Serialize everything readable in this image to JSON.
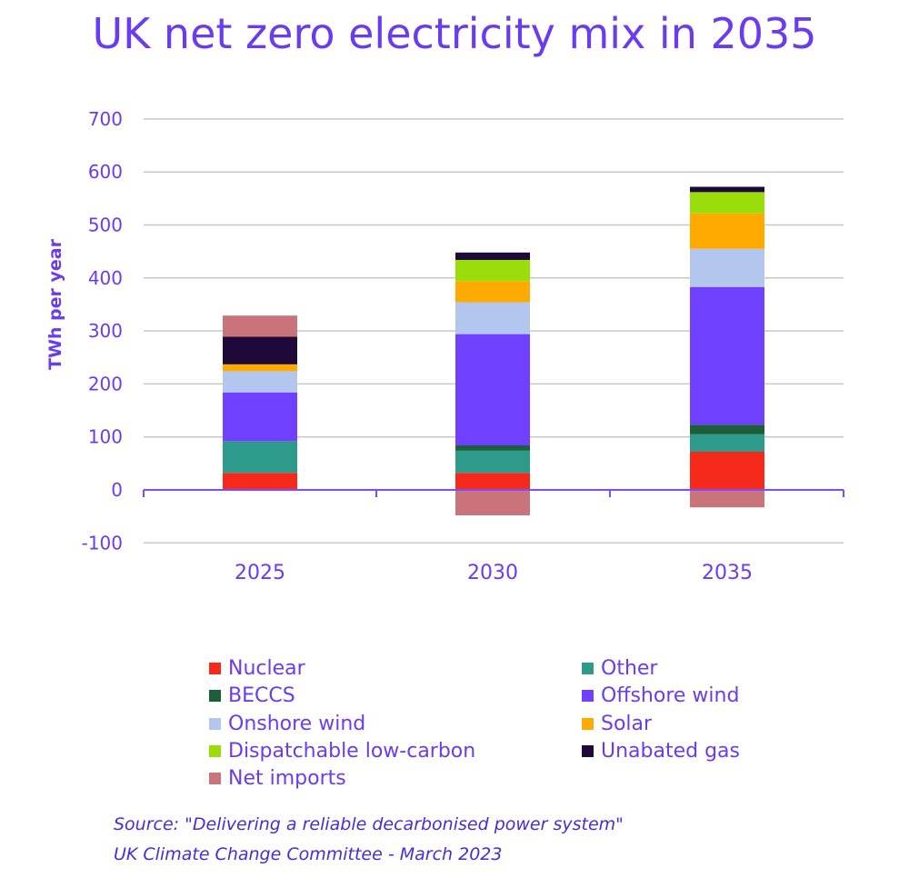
{
  "title": "UK net zero electricity mix in 2035",
  "chart_data": {
    "type": "bar",
    "stacked": true,
    "categories": [
      "2025",
      "2030",
      "2035"
    ],
    "ylabel": "TWh per year",
    "ylim": [
      -100,
      700
    ],
    "yticks": [
      "700",
      "600",
      "500",
      "400",
      "300",
      "200",
      "100",
      "0",
      "-100"
    ],
    "grid": true,
    "legend_position": "bottom",
    "series": [
      {
        "name": "Nuclear",
        "color": "#f52a1a",
        "values": [
          32,
          32,
          72
        ]
      },
      {
        "name": "Other",
        "color": "#2e9a8c",
        "values": [
          60,
          42,
          33
        ]
      },
      {
        "name": "BECCS",
        "color": "#1a5e3a",
        "values": [
          0,
          10,
          18
        ]
      },
      {
        "name": "Offshore wind",
        "color": "#7040ff",
        "values": [
          92,
          210,
          260
        ]
      },
      {
        "name": "Onshore wind",
        "color": "#b3c6ee",
        "values": [
          40,
          60,
          72
        ]
      },
      {
        "name": "Solar",
        "color": "#ffaa00",
        "values": [
          13,
          40,
          67
        ]
      },
      {
        "name": "Dispatchable low-carbon",
        "color": "#99dd0a",
        "values": [
          0,
          40,
          40
        ]
      },
      {
        "name": "Unabated gas",
        "color": "#1e0a3a",
        "values": [
          52,
          14,
          10
        ]
      },
      {
        "name": "Net imports",
        "color": "#c8747a",
        "values": [
          40,
          -48,
          -33
        ]
      }
    ]
  },
  "legend": [
    {
      "label": "Nuclear",
      "color": "#f52a1a"
    },
    {
      "label": "Other",
      "color": "#2e9a8c"
    },
    {
      "label": "BECCS",
      "color": "#1a5e3a"
    },
    {
      "label": "Offshore wind",
      "color": "#7040ff"
    },
    {
      "label": "Onshore wind",
      "color": "#b3c6ee"
    },
    {
      "label": "Solar",
      "color": "#ffaa00"
    },
    {
      "label": "Dispatchable low-carbon",
      "color": "#99dd0a"
    },
    {
      "label": "Unabated gas",
      "color": "#1e0a3a"
    },
    {
      "label": "Net imports",
      "color": "#c8747a"
    }
  ],
  "source": {
    "line1": "Source: \"Delivering a reliable decarbonised power system\"",
    "line2": "UK Climate Change Committee - March 2023"
  }
}
